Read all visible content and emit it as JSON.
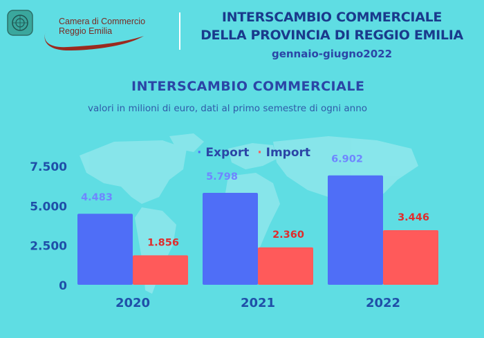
{
  "header": {
    "logo_line1": "Camera di Commercio",
    "logo_line2": "Reggio Emilia",
    "title_line1": "INTERSCAMBIO COMMERCIALE",
    "title_line2": "DELLA PROVINCIA DI REGGIO EMILIA",
    "period": "gennaio-giugno2022"
  },
  "colors": {
    "background": "#5fdde3",
    "export": "#4f6ef7",
    "import": "#ff5a5a",
    "title": "#2b45a6",
    "axis_text": "#1f4fa8",
    "logo": "#7a2a23"
  },
  "chart_data": {
    "type": "bar",
    "title": "INTERSCAMBIO COMMERCIALE",
    "subtitle": "valori in milioni di euro, dati al primo semestre di ogni anno",
    "categories": [
      "2020",
      "2021",
      "2022"
    ],
    "series": [
      {
        "name": "Export",
        "values": [
          4483,
          5798,
          6902
        ],
        "labels": [
          "4.483",
          "5.798",
          "6.902"
        ],
        "color": "#4f6ef7"
      },
      {
        "name": "Import",
        "values": [
          1856,
          2360,
          3446
        ],
        "labels": [
          "1.856",
          "2.360",
          "3.446"
        ],
        "color": "#ff5a5a"
      }
    ],
    "yticks": [
      0,
      2500,
      5000,
      7500
    ],
    "ytick_labels": [
      "0",
      "2.500",
      "5.000",
      "7.500"
    ],
    "ylim": [
      0,
      7500
    ],
    "grid": false,
    "legend_position": "top"
  }
}
